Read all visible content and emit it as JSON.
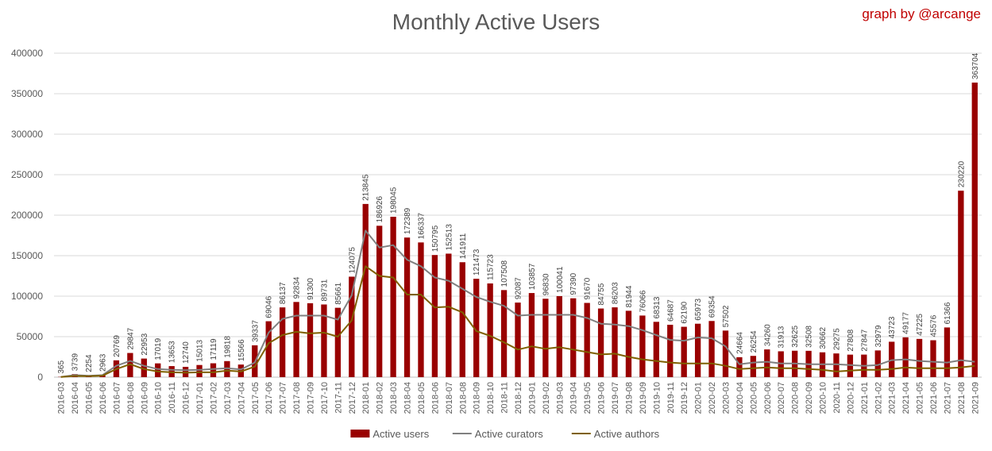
{
  "credit": "graph by @arcange",
  "chart_data": {
    "type": "bar",
    "title": "Monthly Active Users",
    "xlabel": "",
    "ylabel": "",
    "ylim": [
      0,
      400000
    ],
    "yticks": [
      0,
      50000,
      100000,
      150000,
      200000,
      250000,
      300000,
      350000,
      400000
    ],
    "ytick_labels": [
      "0",
      "50000",
      "100000",
      "150000",
      "200000",
      "250000",
      "300000",
      "350000",
      "400000"
    ],
    "grid": true,
    "legend_position": "bottom",
    "categories": [
      "2016-03",
      "2016-04",
      "2016-05",
      "2016-06",
      "2016-07",
      "2016-08",
      "2016-09",
      "2016-10",
      "2016-11",
      "2016-12",
      "2017-01",
      "2017-02",
      "2017-03",
      "2017-04",
      "2017-05",
      "2017-06",
      "2017-07",
      "2017-08",
      "2017-09",
      "2017-10",
      "2017-11",
      "2017-12",
      "2018-01",
      "2018-02",
      "2018-03",
      "2018-04",
      "2018-05",
      "2018-06",
      "2018-07",
      "2018-08",
      "2018-09",
      "2018-10",
      "2018-11",
      "2018-12",
      "2019-01",
      "2019-02",
      "2019-03",
      "2019-04",
      "2019-05",
      "2019-06",
      "2019-07",
      "2019-08",
      "2019-09",
      "2019-10",
      "2019-11",
      "2019-12",
      "2020-01",
      "2020-02",
      "2020-03",
      "2020-04",
      "2020-05",
      "2020-06",
      "2020-07",
      "2020-08",
      "2020-09",
      "2020-10",
      "2020-11",
      "2020-12",
      "2021-01",
      "2021-02",
      "2021-03",
      "2021-04",
      "2021-05",
      "2021-06",
      "2021-07",
      "2021-08",
      "2021-09"
    ],
    "series": [
      {
        "name": "Active users",
        "type": "bar",
        "color": "#990000",
        "values": [
          365,
          3739,
          2254,
          2963,
          20769,
          29847,
          22953,
          17019,
          13653,
          12740,
          15013,
          17119,
          19818,
          15566,
          39337,
          69046,
          86137,
          92834,
          91300,
          89731,
          85661,
          124075,
          213845,
          186926,
          198045,
          172389,
          166337,
          150795,
          152513,
          141911,
          121473,
          115723,
          107508,
          92087,
          103857,
          96830,
          100041,
          97390,
          91670,
          84755,
          86203,
          81944,
          76066,
          68313,
          64687,
          62190,
          65973,
          69354,
          57502,
          24664,
          26254,
          34260,
          31913,
          32625,
          32508,
          30662,
          29275,
          27808,
          27847,
          32979,
          43723,
          49177,
          47225,
          45576,
          61366,
          230220,
          363704
        ]
      },
      {
        "name": "Active curators",
        "type": "line",
        "color": "#808080",
        "values": [
          300,
          2500,
          1800,
          2500,
          14000,
          20000,
          14000,
          10000,
          9000,
          8500,
          9000,
          10000,
          11000,
          9500,
          18000,
          55000,
          72000,
          76000,
          76000,
          76000,
          71000,
          101000,
          181000,
          160000,
          163000,
          145000,
          137000,
          123000,
          119000,
          109000,
          99000,
          93000,
          88000,
          76000,
          77000,
          77000,
          77000,
          77000,
          73000,
          66000,
          65000,
          63000,
          58000,
          52000,
          46000,
          45000,
          49000,
          48000,
          38000,
          16000,
          18000,
          19000,
          17000,
          17000,
          16000,
          16000,
          16000,
          15000,
          14000,
          15000,
          21000,
          22000,
          20000,
          19000,
          18000,
          21000,
          19000
        ]
      },
      {
        "name": "Active authors",
        "type": "line",
        "color": "#7f6000",
        "values": [
          200,
          1500,
          1200,
          1800,
          10000,
          16000,
          10000,
          7000,
          6000,
          5500,
          6000,
          6000,
          8000,
          7000,
          13000,
          42000,
          52000,
          56000,
          54000,
          55000,
          50000,
          70000,
          137000,
          125000,
          123000,
          102000,
          102000,
          86000,
          87000,
          80000,
          57000,
          51000,
          43000,
          34000,
          38000,
          35000,
          37000,
          34000,
          31000,
          28000,
          29000,
          25000,
          22000,
          20000,
          18000,
          17000,
          17000,
          17000,
          14000,
          10000,
          11000,
          12000,
          11000,
          11000,
          10000,
          9000,
          7000,
          8000,
          9000,
          9000,
          10000,
          12000,
          11000,
          11000,
          11000,
          12000,
          14000
        ]
      }
    ]
  }
}
